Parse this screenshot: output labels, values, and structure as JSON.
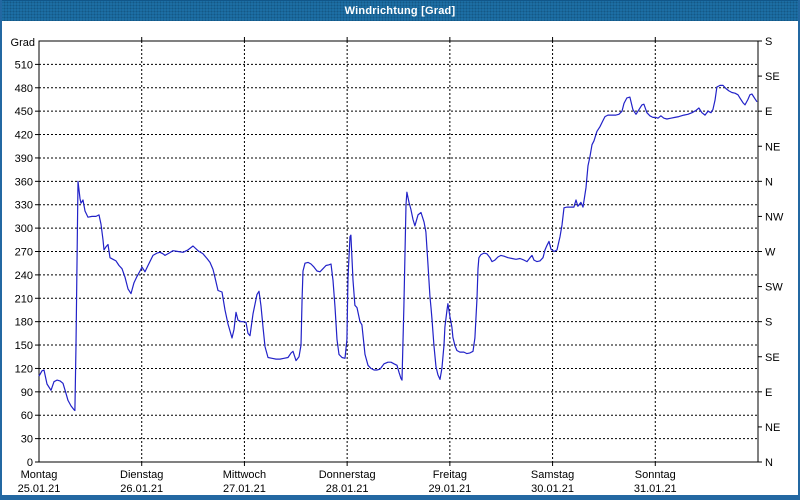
{
  "window": {
    "title": "Windrichtung [Grad]"
  },
  "colors": {
    "titlebar_blue": "#1d6fa5",
    "border_blue": "#2368a2",
    "line_blue": "#2222c8",
    "grid_black": "#000000",
    "background": "#ffffff"
  },
  "chart_data": {
    "type": "line",
    "title": "Windrichtung [Grad]",
    "ylabel": "Grad",
    "xlabel": "",
    "grid": "dashed",
    "legend": "none",
    "ylim": [
      0,
      540
    ],
    "xlim_days": [
      0,
      7
    ],
    "y_ticks_left_step": 30,
    "y_ticks_left": [
      0,
      30,
      60,
      90,
      120,
      150,
      180,
      210,
      240,
      270,
      300,
      330,
      360,
      390,
      420,
      450,
      480,
      510
    ],
    "y_axis_right_unit": "compass",
    "y_ticks_right_step_deg": 45,
    "y_ticks_right": [
      "N",
      "NE",
      "E",
      "SE",
      "S",
      "SW",
      "W",
      "NW",
      "N",
      "NE",
      "E",
      "SE",
      "S"
    ],
    "x_ticks": [
      {
        "day": "Montag",
        "date": "25.01.21"
      },
      {
        "day": "Dienstag",
        "date": "26.01.21"
      },
      {
        "day": "Mittwoch",
        "date": "27.01.21"
      },
      {
        "day": "Donnerstag",
        "date": "28.01.21"
      },
      {
        "day": "Freitag",
        "date": "29.01.21"
      },
      {
        "day": "Samstag",
        "date": "30.01.21"
      },
      {
        "day": "Sonntag",
        "date": "31.01.21"
      }
    ],
    "series": [
      {
        "name": "Windrichtung",
        "x_unit": "days since Montag 25.01.21 00:00",
        "y_unit": "Grad",
        "points": [
          [
            0.0,
            110
          ],
          [
            0.029,
            117
          ],
          [
            0.049,
            118
          ],
          [
            0.078,
            100
          ],
          [
            0.117,
            92
          ],
          [
            0.146,
            103
          ],
          [
            0.175,
            105
          ],
          [
            0.204,
            104
          ],
          [
            0.234,
            101
          ],
          [
            0.263,
            88
          ],
          [
            0.282,
            79
          ],
          [
            0.312,
            72
          ],
          [
            0.341,
            67
          ],
          [
            0.35,
            66
          ],
          [
            0.36,
            150
          ],
          [
            0.38,
            360
          ],
          [
            0.399,
            338
          ],
          [
            0.409,
            332
          ],
          [
            0.428,
            336
          ],
          [
            0.448,
            322
          ],
          [
            0.477,
            314
          ],
          [
            0.516,
            315
          ],
          [
            0.555,
            315
          ],
          [
            0.584,
            317
          ],
          [
            0.604,
            305
          ],
          [
            0.623,
            285
          ],
          [
            0.633,
            272
          ],
          [
            0.652,
            276
          ],
          [
            0.672,
            279
          ],
          [
            0.691,
            262
          ],
          [
            0.72,
            260
          ],
          [
            0.75,
            258
          ],
          [
            0.779,
            252
          ],
          [
            0.808,
            248
          ],
          [
            0.837,
            237
          ],
          [
            0.866,
            222
          ],
          [
            0.896,
            216
          ],
          [
            0.925,
            230
          ],
          [
            0.954,
            238
          ],
          [
            0.983,
            245
          ],
          [
            1.003,
            250
          ],
          [
            1.032,
            244
          ],
          [
            1.061,
            252
          ],
          [
            1.11,
            265
          ],
          [
            1.149,
            268
          ],
          [
            1.178,
            269
          ],
          [
            1.207,
            267
          ],
          [
            1.227,
            265
          ],
          [
            1.266,
            268
          ],
          [
            1.305,
            271
          ],
          [
            1.353,
            270
          ],
          [
            1.402,
            269
          ],
          [
            1.451,
            272
          ],
          [
            1.499,
            277
          ],
          [
            1.548,
            271
          ],
          [
            1.597,
            267
          ],
          [
            1.636,
            261
          ],
          [
            1.665,
            256
          ],
          [
            1.694,
            247
          ],
          [
            1.713,
            237
          ],
          [
            1.743,
            220
          ],
          [
            1.782,
            218
          ],
          [
            1.811,
            195
          ],
          [
            1.84,
            177
          ],
          [
            1.879,
            159
          ],
          [
            1.898,
            170
          ],
          [
            1.918,
            192
          ],
          [
            1.937,
            182
          ],
          [
            1.967,
            180
          ],
          [
            1.996,
            180
          ],
          [
            2.015,
            179
          ],
          [
            2.035,
            165
          ],
          [
            2.054,
            162
          ],
          [
            2.083,
            190
          ],
          [
            2.122,
            215
          ],
          [
            2.142,
            219
          ],
          [
            2.161,
            200
          ],
          [
            2.181,
            173
          ],
          [
            2.2,
            148
          ],
          [
            2.229,
            134
          ],
          [
            2.268,
            133
          ],
          [
            2.307,
            132
          ],
          [
            2.346,
            132
          ],
          [
            2.385,
            133
          ],
          [
            2.424,
            134
          ],
          [
            2.454,
            140
          ],
          [
            2.473,
            142
          ],
          [
            2.502,
            130
          ],
          [
            2.531,
            135
          ],
          [
            2.551,
            150
          ],
          [
            2.561,
            210
          ],
          [
            2.57,
            245
          ],
          [
            2.59,
            255
          ],
          [
            2.619,
            256
          ],
          [
            2.648,
            254
          ],
          [
            2.677,
            250
          ],
          [
            2.707,
            245
          ],
          [
            2.736,
            244
          ],
          [
            2.765,
            248
          ],
          [
            2.794,
            252
          ],
          [
            2.823,
            253
          ],
          [
            2.843,
            254
          ],
          [
            2.862,
            233
          ],
          [
            2.882,
            199
          ],
          [
            2.901,
            157
          ],
          [
            2.921,
            138
          ],
          [
            2.95,
            134
          ],
          [
            2.979,
            133
          ],
          [
            2.998,
            157
          ],
          [
            3.008,
            237
          ],
          [
            3.028,
            289
          ],
          [
            3.037,
            291
          ],
          [
            3.057,
            233
          ],
          [
            3.076,
            201
          ],
          [
            3.096,
            198
          ],
          [
            3.125,
            180
          ],
          [
            3.144,
            176
          ],
          [
            3.174,
            138
          ],
          [
            3.203,
            124
          ],
          [
            3.232,
            120
          ],
          [
            3.261,
            118
          ],
          [
            3.29,
            118
          ],
          [
            3.32,
            119
          ],
          [
            3.359,
            126
          ],
          [
            3.398,
            128
          ],
          [
            3.427,
            128
          ],
          [
            3.456,
            126
          ],
          [
            3.485,
            124
          ],
          [
            3.505,
            115
          ],
          [
            3.524,
            107
          ],
          [
            3.534,
            105
          ],
          [
            3.553,
            200
          ],
          [
            3.573,
            330
          ],
          [
            3.582,
            346
          ],
          [
            3.602,
            333
          ],
          [
            3.621,
            324
          ],
          [
            3.641,
            311
          ],
          [
            3.66,
            303
          ],
          [
            3.69,
            317
          ],
          [
            3.719,
            320
          ],
          [
            3.748,
            308
          ],
          [
            3.767,
            295
          ],
          [
            3.787,
            253
          ],
          [
            3.796,
            234
          ],
          [
            3.806,
            213
          ],
          [
            3.816,
            198
          ],
          [
            3.826,
            183
          ],
          [
            3.845,
            150
          ],
          [
            3.865,
            122
          ],
          [
            3.884,
            112
          ],
          [
            3.904,
            106
          ],
          [
            3.923,
            120
          ],
          [
            3.943,
            150
          ],
          [
            3.952,
            173
          ],
          [
            3.972,
            195
          ],
          [
            3.981,
            203
          ],
          [
            4.001,
            186
          ],
          [
            4.02,
            173
          ],
          [
            4.03,
            160
          ],
          [
            4.05,
            149
          ],
          [
            4.069,
            143
          ],
          [
            4.098,
            141
          ],
          [
            4.137,
            141
          ],
          [
            4.166,
            139
          ],
          [
            4.196,
            140
          ],
          [
            4.225,
            142
          ],
          [
            4.244,
            159
          ],
          [
            4.264,
            210
          ],
          [
            4.274,
            248
          ],
          [
            4.283,
            262
          ],
          [
            4.303,
            266
          ],
          [
            4.332,
            268
          ],
          [
            4.361,
            267
          ],
          [
            4.391,
            262
          ],
          [
            4.41,
            257
          ],
          [
            4.439,
            259
          ],
          [
            4.468,
            263
          ],
          [
            4.498,
            265
          ],
          [
            4.527,
            264
          ],
          [
            4.566,
            262
          ],
          [
            4.605,
            261
          ],
          [
            4.644,
            260
          ],
          [
            4.683,
            261
          ],
          [
            4.722,
            259
          ],
          [
            4.751,
            257
          ],
          [
            4.78,
            262
          ],
          [
            4.8,
            265
          ],
          [
            4.819,
            259
          ],
          [
            4.848,
            257
          ],
          [
            4.877,
            258
          ],
          [
            4.907,
            262
          ],
          [
            4.926,
            272
          ],
          [
            4.946,
            278
          ],
          [
            4.965,
            283
          ],
          [
            4.985,
            273
          ],
          [
            5.014,
            270
          ],
          [
            5.043,
            272
          ],
          [
            5.072,
            289
          ],
          [
            5.092,
            304
          ],
          [
            5.111,
            326
          ],
          [
            5.14,
            327
          ],
          [
            5.179,
            327
          ],
          [
            5.208,
            327
          ],
          [
            5.228,
            336
          ],
          [
            5.247,
            328
          ],
          [
            5.276,
            333
          ],
          [
            5.296,
            327
          ],
          [
            5.325,
            352
          ],
          [
            5.345,
            380
          ],
          [
            5.364,
            392
          ],
          [
            5.384,
            407
          ],
          [
            5.403,
            412
          ],
          [
            5.432,
            424
          ],
          [
            5.461,
            430
          ],
          [
            5.491,
            438
          ],
          [
            5.51,
            443
          ],
          [
            5.539,
            445
          ],
          [
            5.578,
            445
          ],
          [
            5.617,
            445
          ],
          [
            5.646,
            446
          ],
          [
            5.676,
            450
          ],
          [
            5.695,
            460
          ],
          [
            5.724,
            467
          ],
          [
            5.753,
            468
          ],
          [
            5.782,
            452
          ],
          [
            5.812,
            446
          ],
          [
            5.841,
            452
          ],
          [
            5.87,
            458
          ],
          [
            5.889,
            459
          ],
          [
            5.918,
            448
          ],
          [
            5.948,
            444
          ],
          [
            5.977,
            442
          ],
          [
            6.006,
            442
          ],
          [
            6.026,
            441
          ],
          [
            6.055,
            444
          ],
          [
            6.084,
            441
          ],
          [
            6.113,
            440
          ],
          [
            6.152,
            441
          ],
          [
            6.191,
            442
          ],
          [
            6.23,
            443
          ],
          [
            6.279,
            445
          ],
          [
            6.318,
            446
          ],
          [
            6.357,
            448
          ],
          [
            6.396,
            451
          ],
          [
            6.425,
            454
          ],
          [
            6.454,
            448
          ],
          [
            6.484,
            445
          ],
          [
            6.513,
            450
          ],
          [
            6.542,
            448
          ],
          [
            6.561,
            452
          ],
          [
            6.581,
            464
          ],
          [
            6.6,
            481
          ],
          [
            6.63,
            483
          ],
          [
            6.659,
            483
          ],
          [
            6.688,
            479
          ],
          [
            6.717,
            476
          ],
          [
            6.746,
            474
          ],
          [
            6.776,
            473
          ],
          [
            6.805,
            471
          ],
          [
            6.824,
            467
          ],
          [
            6.853,
            461
          ],
          [
            6.873,
            458
          ],
          [
            6.902,
            465
          ],
          [
            6.921,
            471
          ],
          [
            6.941,
            472
          ],
          [
            6.97,
            466
          ],
          [
            6.99,
            462
          ]
        ]
      }
    ]
  }
}
